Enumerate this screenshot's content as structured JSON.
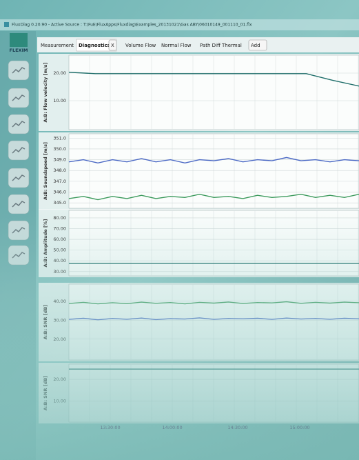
{
  "window": {
    "title": "FluxDiag 0.20.90 - Active Source : T:\\FuE\\FluxApps\\Fluxdiag\\Examples_20131021\\Gas ABY\\06010149_001110_01.flx",
    "logo": "FLEXIM"
  },
  "tabs": [
    "Measurement",
    "Diagnostics",
    "X",
    "Volume Flow",
    "Normal Flow",
    "Path Diff",
    "Thermal",
    "Add"
  ],
  "panels": [
    {
      "ylabel": "A:B: Flow velocity [m/s]",
      "ylim": [
        -0.5,
        26.5
      ],
      "yticks": [
        {
          "value": 20,
          "label": "20.00"
        },
        {
          "value": 10,
          "label": "10.00"
        }
      ],
      "series": [
        {
          "color": "#1f6e6a",
          "values": [
            20.3,
            19.8,
            19.8,
            19.8,
            19.8,
            19.8,
            19.8,
            19.8,
            19.8,
            19.8,
            17.4,
            15.3
          ]
        }
      ]
    },
    {
      "ylabel": "A:B: Soundspeed [m/s]",
      "ylim": [
        344.5,
        351.4
      ],
      "yticks": [
        {
          "value": 351,
          "label": "351.0"
        },
        {
          "value": 350,
          "label": "350.0"
        },
        {
          "value": 349,
          "label": "349.0"
        },
        {
          "value": 348,
          "label": "348.0"
        },
        {
          "value": 347,
          "label": "347.0"
        },
        {
          "value": 346,
          "label": "346.0"
        },
        {
          "value": 345,
          "label": "345.0"
        }
      ],
      "series": [
        {
          "color": "#4a68c4",
          "values": [
            348.8,
            349.0,
            348.7,
            349.0,
            348.8,
            349.1,
            348.8,
            349.0,
            348.7,
            349.0,
            348.9,
            349.1,
            348.8,
            349.0,
            348.9,
            349.2,
            348.9,
            349.0,
            348.8,
            349.0,
            348.9
          ]
        },
        {
          "color": "#3c9a5c",
          "values": [
            345.4,
            345.6,
            345.3,
            345.6,
            345.4,
            345.7,
            345.4,
            345.6,
            345.5,
            345.8,
            345.5,
            345.6,
            345.4,
            345.7,
            345.5,
            345.6,
            345.8,
            345.5,
            345.7,
            345.5,
            345.8
          ]
        }
      ]
    },
    {
      "ylabel": "A:B: Amplitude [%]",
      "ylim": [
        26,
        87
      ],
      "yticks": [
        {
          "value": 80,
          "label": "80.00"
        },
        {
          "value": 70,
          "label": "70.00"
        },
        {
          "value": 60,
          "label": "60.00"
        },
        {
          "value": 50,
          "label": "50.00"
        },
        {
          "value": 40,
          "label": "40.00"
        },
        {
          "value": 30,
          "label": "30.00"
        }
      ],
      "series": [
        {
          "color": "#1f6e6a",
          "values": [
            37.6,
            37.6,
            37.6,
            37.6,
            37.6,
            37.6,
            37.6,
            37.6,
            37.6,
            37.6,
            37.6
          ]
        }
      ]
    },
    {
      "ylabel": "A:B: SNR [dB]",
      "ylim": [
        9,
        49
      ],
      "yticks": [
        {
          "value": 40,
          "label": "40.00"
        },
        {
          "value": 30,
          "label": "30.00"
        },
        {
          "value": 20,
          "label": "20.00"
        }
      ],
      "series": [
        {
          "color": "#3c9a5c",
          "values": [
            38.8,
            39.4,
            38.6,
            39.2,
            38.7,
            39.5,
            38.9,
            39.3,
            38.6,
            39.4,
            39.0,
            39.6,
            38.8,
            39.3,
            39.1,
            39.7,
            38.9,
            39.4,
            39.0,
            39.5,
            39.2
          ]
        },
        {
          "color": "#4a68c4",
          "values": [
            30.4,
            31.0,
            30.2,
            30.9,
            30.5,
            31.1,
            30.3,
            30.8,
            30.6,
            31.2,
            30.4,
            30.9,
            30.7,
            31.0,
            30.4,
            31.1,
            30.6,
            30.9,
            30.5,
            31.0,
            30.7
          ]
        }
      ]
    },
    {
      "ylabel": "A:B: SNR [dB]",
      "ylim": [
        0.3,
        27
      ],
      "yticks": [
        {
          "value": 20,
          "label": "20.00"
        },
        {
          "value": 10,
          "label": "10.00"
        }
      ],
      "series": [
        {
          "color": "#1f6e6a",
          "values": [
            24.7,
            24.7,
            24.7,
            24.7,
            24.7,
            24.7,
            24.7,
            24.7,
            24.7,
            24.7,
            24.7
          ]
        }
      ]
    }
  ],
  "xticks": [
    "13:30:00",
    "14:00:00",
    "14:30:00",
    "15:00:00"
  ]
}
